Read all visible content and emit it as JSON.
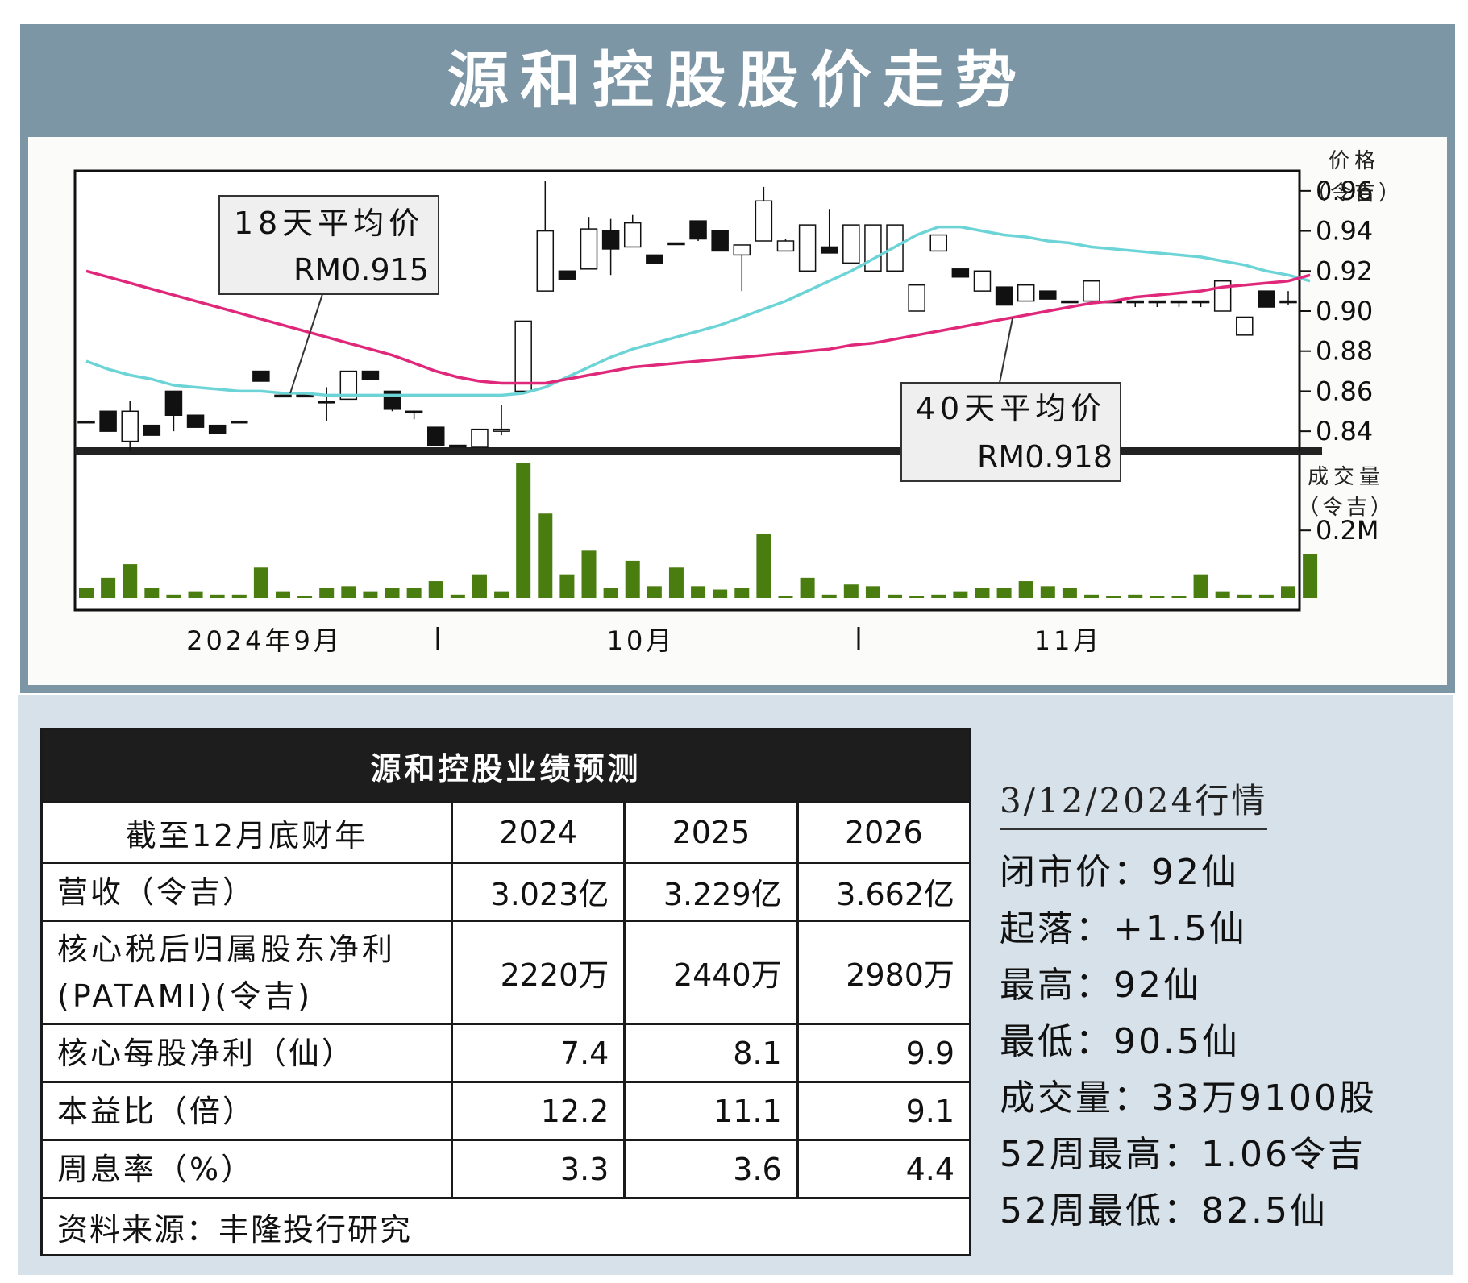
{
  "header": {
    "title": "源和控股股价走势"
  },
  "chart_labels": {
    "price_axis_title": "价格",
    "price_axis_unit": "（令吉）",
    "volume_axis_title": "成交量",
    "volume_axis_unit": "（令吉）",
    "ma18_title": "18天平均价",
    "ma18_value": "RM0.915",
    "ma40_title": "40天平均价",
    "ma40_value": "RM0.918",
    "month_sep": "2024年9月",
    "month_oct": "10月",
    "month_nov": "11月"
  },
  "chart_data": {
    "type": "candlestick",
    "title": "源和控股股价走势",
    "price_axis": {
      "ticks": [
        0.96,
        0.94,
        0.92,
        0.9,
        0.88,
        0.86,
        0.84
      ],
      "range": [
        0.83,
        0.97
      ]
    },
    "volume_axis": {
      "ticks": [
        "0.2M"
      ],
      "tick_value": 0.2,
      "range": [
        0,
        0.42
      ]
    },
    "x_labels": [
      "2024年9月",
      "10月",
      "11月"
    ],
    "candles": [
      {
        "o": 0.845,
        "h": 0.845,
        "l": 0.845,
        "c": 0.845
      },
      {
        "o": 0.85,
        "h": 0.85,
        "l": 0.84,
        "c": 0.84
      },
      {
        "o": 0.835,
        "h": 0.855,
        "l": 0.83,
        "c": 0.85
      },
      {
        "o": 0.843,
        "h": 0.843,
        "l": 0.838,
        "c": 0.838
      },
      {
        "o": 0.86,
        "h": 0.86,
        "l": 0.84,
        "c": 0.848
      },
      {
        "o": 0.848,
        "h": 0.848,
        "l": 0.842,
        "c": 0.842
      },
      {
        "o": 0.843,
        "h": 0.843,
        "l": 0.839,
        "c": 0.839
      },
      {
        "o": 0.845,
        "h": 0.845,
        "l": 0.845,
        "c": 0.845
      },
      {
        "o": 0.87,
        "h": 0.87,
        "l": 0.865,
        "c": 0.865
      },
      {
        "o": 0.858,
        "h": 0.858,
        "l": 0.858,
        "c": 0.858
      },
      {
        "o": 0.858,
        "h": 0.858,
        "l": 0.858,
        "c": 0.858
      },
      {
        "o": 0.855,
        "h": 0.862,
        "l": 0.845,
        "c": 0.855
      },
      {
        "o": 0.856,
        "h": 0.87,
        "l": 0.856,
        "c": 0.87
      },
      {
        "o": 0.87,
        "h": 0.87,
        "l": 0.866,
        "c": 0.866
      },
      {
        "o": 0.86,
        "h": 0.86,
        "l": 0.85,
        "c": 0.851
      },
      {
        "o": 0.85,
        "h": 0.85,
        "l": 0.846,
        "c": 0.85
      },
      {
        "o": 0.842,
        "h": 0.842,
        "l": 0.833,
        "c": 0.833
      },
      {
        "o": 0.833,
        "h": 0.833,
        "l": 0.833,
        "c": 0.833
      },
      {
        "o": 0.832,
        "h": 0.841,
        "l": 0.832,
        "c": 0.841
      },
      {
        "o": 0.84,
        "h": 0.853,
        "l": 0.838,
        "c": 0.841
      },
      {
        "o": 0.86,
        "h": 0.895,
        "l": 0.86,
        "c": 0.895
      },
      {
        "o": 0.91,
        "h": 0.965,
        "l": 0.91,
        "c": 0.94
      },
      {
        "o": 0.92,
        "h": 0.92,
        "l": 0.916,
        "c": 0.916
      },
      {
        "o": 0.921,
        "h": 0.947,
        "l": 0.921,
        "c": 0.941
      },
      {
        "o": 0.94,
        "h": 0.946,
        "l": 0.918,
        "c": 0.931
      },
      {
        "o": 0.932,
        "h": 0.948,
        "l": 0.932,
        "c": 0.944
      },
      {
        "o": 0.928,
        "h": 0.928,
        "l": 0.924,
        "c": 0.924
      },
      {
        "o": 0.934,
        "h": 0.934,
        "l": 0.934,
        "c": 0.934
      },
      {
        "o": 0.945,
        "h": 0.945,
        "l": 0.935,
        "c": 0.936
      },
      {
        "o": 0.94,
        "h": 0.94,
        "l": 0.93,
        "c": 0.93
      },
      {
        "o": 0.928,
        "h": 0.933,
        "l": 0.91,
        "c": 0.933
      },
      {
        "o": 0.935,
        "h": 0.962,
        "l": 0.935,
        "c": 0.955
      },
      {
        "o": 0.93,
        "h": 0.936,
        "l": 0.93,
        "c": 0.935
      },
      {
        "o": 0.92,
        "h": 0.943,
        "l": 0.92,
        "c": 0.943
      },
      {
        "o": 0.932,
        "h": 0.951,
        "l": 0.929,
        "c": 0.929
      },
      {
        "o": 0.924,
        "h": 0.943,
        "l": 0.924,
        "c": 0.943
      },
      {
        "o": 0.92,
        "h": 0.943,
        "l": 0.92,
        "c": 0.943
      },
      {
        "o": 0.92,
        "h": 0.943,
        "l": 0.92,
        "c": 0.943
      },
      {
        "o": 0.9,
        "h": 0.913,
        "l": 0.9,
        "c": 0.913
      },
      {
        "o": 0.93,
        "h": 0.938,
        "l": 0.93,
        "c": 0.938
      },
      {
        "o": 0.921,
        "h": 0.921,
        "l": 0.917,
        "c": 0.917
      },
      {
        "o": 0.91,
        "h": 0.92,
        "l": 0.91,
        "c": 0.92
      },
      {
        "o": 0.912,
        "h": 0.912,
        "l": 0.903,
        "c": 0.903
      },
      {
        "o": 0.905,
        "h": 0.913,
        "l": 0.905,
        "c": 0.913
      },
      {
        "o": 0.91,
        "h": 0.91,
        "l": 0.906,
        "c": 0.906
      },
      {
        "o": 0.905,
        "h": 0.905,
        "l": 0.905,
        "c": 0.905
      },
      {
        "o": 0.905,
        "h": 0.915,
        "l": 0.905,
        "c": 0.915
      },
      {
        "o": 0.905,
        "h": 0.905,
        "l": 0.905,
        "c": 0.905
      },
      {
        "o": 0.905,
        "h": 0.905,
        "l": 0.902,
        "c": 0.905
      },
      {
        "o": 0.905,
        "h": 0.905,
        "l": 0.902,
        "c": 0.905
      },
      {
        "o": 0.905,
        "h": 0.905,
        "l": 0.902,
        "c": 0.905
      },
      {
        "o": 0.905,
        "h": 0.905,
        "l": 0.902,
        "c": 0.905
      },
      {
        "o": 0.9,
        "h": 0.915,
        "l": 0.9,
        "c": 0.915
      },
      {
        "o": 0.888,
        "h": 0.897,
        "l": 0.888,
        "c": 0.897
      },
      {
        "o": 0.91,
        "h": 0.91,
        "l": 0.902,
        "c": 0.902
      },
      {
        "o": 0.905,
        "h": 0.91,
        "l": 0.903,
        "c": 0.905
      }
    ],
    "volume": [
      0.03,
      0.06,
      0.1,
      0.03,
      0.01,
      0.02,
      0.01,
      0.01,
      0.09,
      0.02,
      0.005,
      0.03,
      0.035,
      0.02,
      0.03,
      0.03,
      0.05,
      0.01,
      0.07,
      0.02,
      0.4,
      0.25,
      0.07,
      0.14,
      0.03,
      0.11,
      0.035,
      0.09,
      0.035,
      0.025,
      0.03,
      0.19,
      0.005,
      0.06,
      0.01,
      0.04,
      0.035,
      0.01,
      0.005,
      0.01,
      0.02,
      0.03,
      0.03,
      0.05,
      0.035,
      0.03,
      0.01,
      0.005,
      0.01,
      0.005,
      0.005,
      0.07,
      0.02,
      0.01,
      0.01,
      0.035,
      0.13
    ],
    "series": [
      {
        "name": "18天平均价",
        "color": "#6cd4d6",
        "values": [
          0.875,
          0.871,
          0.868,
          0.866,
          0.863,
          0.862,
          0.861,
          0.86,
          0.86,
          0.859,
          0.859,
          0.858,
          0.858,
          0.858,
          0.858,
          0.858,
          0.858,
          0.858,
          0.858,
          0.858,
          0.859,
          0.862,
          0.867,
          0.872,
          0.877,
          0.881,
          0.884,
          0.887,
          0.89,
          0.893,
          0.897,
          0.901,
          0.905,
          0.91,
          0.915,
          0.92,
          0.926,
          0.932,
          0.938,
          0.942,
          0.942,
          0.94,
          0.938,
          0.937,
          0.935,
          0.934,
          0.932,
          0.931,
          0.93,
          0.929,
          0.928,
          0.927,
          0.925,
          0.923,
          0.92,
          0.918,
          0.915
        ]
      },
      {
        "name": "40天平均价",
        "color": "#e0287a",
        "values": [
          0.92,
          0.917,
          0.914,
          0.911,
          0.908,
          0.905,
          0.902,
          0.899,
          0.896,
          0.893,
          0.89,
          0.887,
          0.884,
          0.881,
          0.878,
          0.874,
          0.87,
          0.867,
          0.865,
          0.864,
          0.864,
          0.864,
          0.866,
          0.868,
          0.87,
          0.872,
          0.873,
          0.874,
          0.875,
          0.876,
          0.877,
          0.878,
          0.879,
          0.88,
          0.881,
          0.883,
          0.884,
          0.886,
          0.888,
          0.89,
          0.892,
          0.894,
          0.896,
          0.898,
          0.9,
          0.902,
          0.904,
          0.905,
          0.907,
          0.908,
          0.909,
          0.91,
          0.912,
          0.913,
          0.914,
          0.915,
          0.918
        ]
      }
    ]
  },
  "forecast": {
    "title": "源和控股业绩预测",
    "header_label": "截至12月底财年",
    "years": [
      "2024",
      "2025",
      "2026"
    ],
    "rows": [
      {
        "label": "营收（令吉）",
        "label2": "",
        "values": [
          "3.023亿",
          "3.229亿",
          "3.662亿"
        ]
      },
      {
        "label": "核心税后归属股东净利",
        "label2": "(PATAMI)(令吉)",
        "values": [
          "2220万",
          "2440万",
          "2980万"
        ]
      },
      {
        "label": "核心每股净利（仙）",
        "label2": "",
        "values": [
          "7.4",
          "8.1",
          "9.9"
        ]
      },
      {
        "label": "本益比（倍）",
        "label2": "",
        "values": [
          "12.2",
          "11.1",
          "9.1"
        ]
      },
      {
        "label": "周息率（%）",
        "label2": "",
        "values": [
          "3.3",
          "3.6",
          "4.4"
        ]
      }
    ],
    "source": "资料来源：丰隆投行研究"
  },
  "quote": {
    "date": "3/12/2024行情",
    "lines": [
      "闭市价：92仙",
      "起落：+1.5仙",
      "最高：92仙",
      "最低：90.5仙",
      "成交量：33万9100股",
      "52周最高：1.06令吉",
      "52周最低：82.5仙"
    ]
  },
  "colors": {
    "header_bg": "#7c96a6",
    "volume_bar": "#4a7d10",
    "ma18": "#6cd4d6",
    "ma40": "#e0287a",
    "bottom_bg": "#d6e1e9"
  }
}
